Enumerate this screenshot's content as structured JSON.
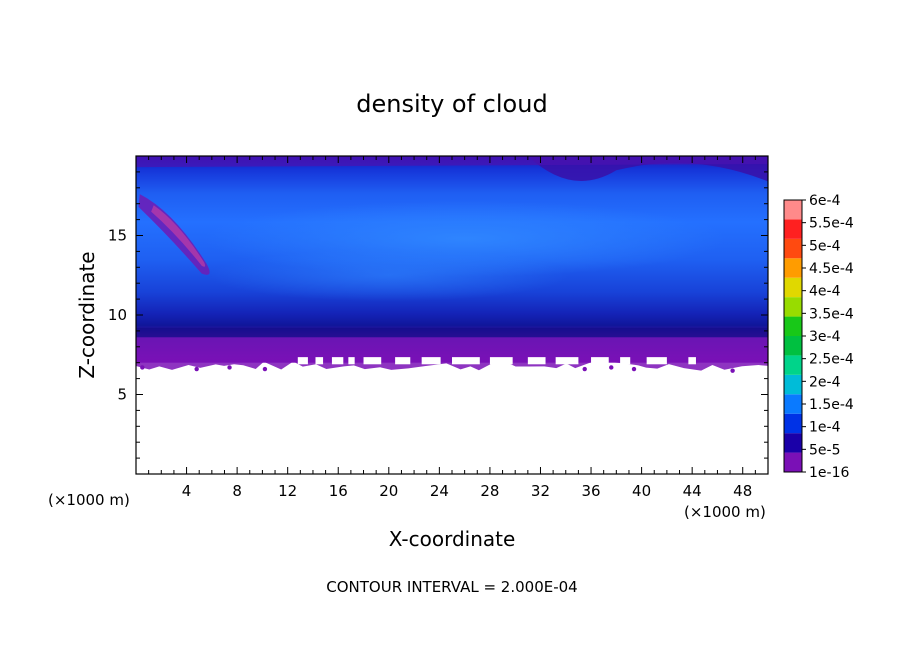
{
  "chart_data": {
    "type": "heatmap",
    "title": "density of cloud",
    "xlabel": "X-coordinate",
    "ylabel": "Z-coordinate",
    "x_unit": "(×1000 m)",
    "x_unit_right": "(×1000 m)",
    "xlim": [
      0,
      50
    ],
    "ylim": [
      0,
      20
    ],
    "x_ticks": [
      4,
      8,
      12,
      16,
      20,
      24,
      28,
      32,
      36,
      40,
      44,
      48
    ],
    "y_ticks": [
      5,
      10,
      15
    ],
    "colorbar": {
      "labels": [
        "1e-16",
        "5e-5",
        "1e-4",
        "1.5e-4",
        "2e-4",
        "2.5e-4",
        "3e-4",
        "3.5e-4",
        "4e-4",
        "4.5e-4",
        "5e-4",
        "5.5e-4",
        "6e-4"
      ],
      "colors": [
        "#7a10b6",
        "#1a00a8",
        "#0032e6",
        "#0a7aff",
        "#00bcd8",
        "#00d48a",
        "#00c040",
        "#18c818",
        "#98dc00",
        "#e0d800",
        "#ff9c00",
        "#ff4a10",
        "#ff2020",
        "#ff8a8a"
      ]
    },
    "cloud_base_km": 7,
    "cloud_top_km": 20,
    "footer": "CONTOUR INTERVAL = 2.000E-04"
  }
}
